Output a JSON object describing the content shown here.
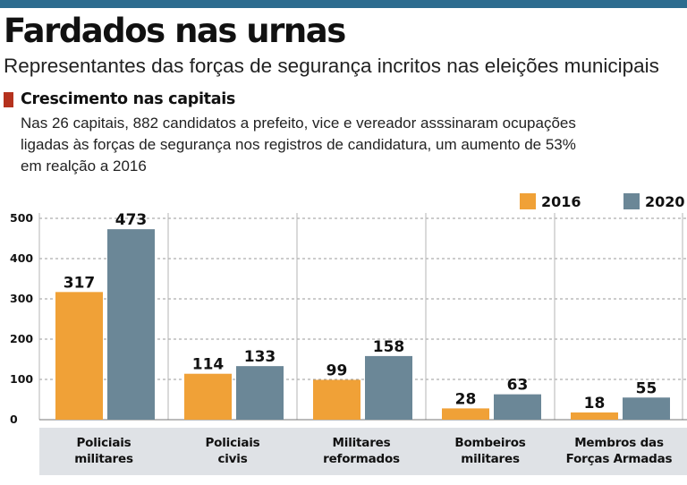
{
  "header": {
    "title": "Fardados nas urnas",
    "subtitle": "Representantes das forças de segurança incritos nas eleições municipais"
  },
  "section": {
    "title": "Crescimento nas capitais",
    "description_lines": [
      "Nas 26 capitais, 882 candidatos a prefeito, vice e vereador asssinaram ocupações",
      "ligadas às forças de segurança nos registros de candidatura, um aumento de 53%",
      "em realção a 2016"
    ]
  },
  "colors": {
    "accent_bar": "#2d6c8f",
    "section_marker": "#b5321e",
    "series_2016": "#f0a137",
    "series_2020": "#6b8797",
    "category_band": "#dfe2e6"
  },
  "chart_data": {
    "type": "bar",
    "categories": [
      [
        "Policiais",
        "militares"
      ],
      [
        "Policiais",
        "civis"
      ],
      [
        "Militares",
        "reformados"
      ],
      [
        "Bombeiros",
        "militares"
      ],
      [
        "Membros das",
        "Forças Armadas"
      ]
    ],
    "series": [
      {
        "name": "2016",
        "values": [
          317,
          114,
          99,
          28,
          18
        ]
      },
      {
        "name": "2020",
        "values": [
          473,
          133,
          158,
          63,
          55
        ]
      }
    ],
    "ylim": [
      0,
      500
    ],
    "yticks": [
      0,
      100,
      200,
      300,
      400,
      500
    ],
    "grid": true,
    "legend_position": "top-right",
    "data_labels": true
  }
}
